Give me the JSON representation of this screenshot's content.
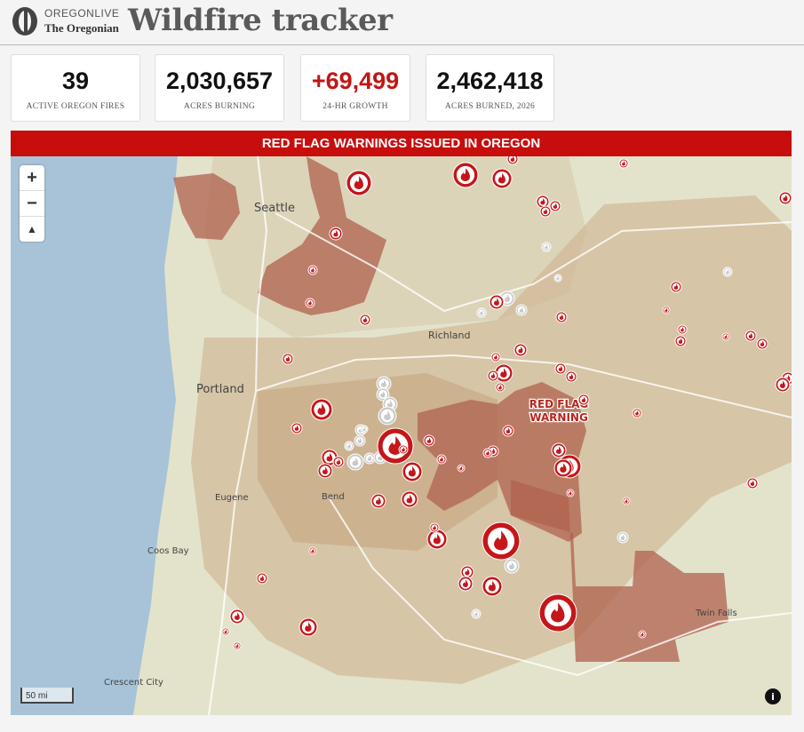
{
  "header": {
    "brand_top": "OREGONLIVE",
    "brand_bottom": "The Oregonian",
    "title": "Wildfire tracker"
  },
  "stats": [
    {
      "value": "39",
      "label": "ACTIVE OREGON FIRES"
    },
    {
      "value": "2,030,657",
      "label": "ACRES BURNING"
    },
    {
      "value": "+69,499",
      "label": "24-HR GROWTH"
    },
    {
      "value": "2,462,418",
      "label": "ACRES BURNED, 2026"
    }
  ],
  "map": {
    "banner": "RED FLAG WARNINGS ISSUED IN OREGON",
    "places": [
      "Seattle",
      "Richland",
      "Portland",
      "Eugene",
      "Bend",
      "Coos Bay",
      "Crescent City",
      "Twin Falls"
    ],
    "warning_label": [
      "RED FLAG",
      "WARNING"
    ],
    "scale": "50 mi",
    "controls": {
      "zoom_in": "+",
      "zoom_out": "−"
    }
  }
}
